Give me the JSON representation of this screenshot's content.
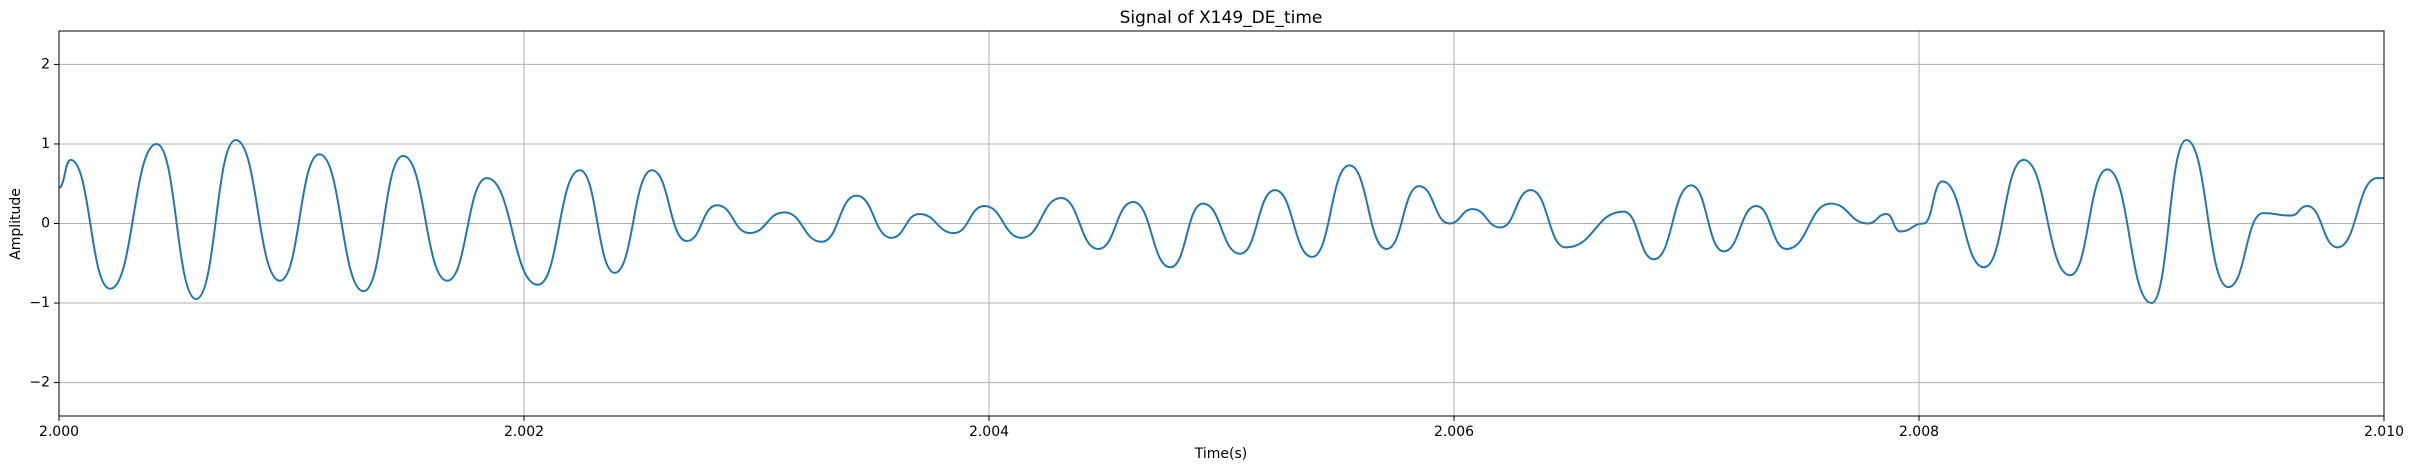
{
  "chart_data": {
    "type": "line",
    "title": "Signal of X149_DE_time",
    "x_label": "Time(s)",
    "y_label": "Amplitude",
    "x": [
      2.0,
      2.00005,
      2.00022,
      2.00042,
      2.00059,
      2.00076,
      2.00095,
      2.00112,
      2.00131,
      2.00148,
      2.00167,
      2.00184,
      2.00206,
      2.00224,
      2.00239,
      2.00255,
      2.0027,
      2.00283,
      2.00297,
      2.00312,
      2.00328,
      2.00343,
      2.00358,
      2.0037,
      2.00385,
      2.00398,
      2.00414,
      2.00431,
      2.00447,
      2.00462,
      2.00478,
      2.00492,
      2.00508,
      2.00523,
      2.00539,
      2.00555,
      2.00571,
      2.00585,
      2.00598,
      2.00608,
      2.0062,
      2.00633,
      2.00648,
      2.00673,
      2.00686,
      2.00702,
      2.00716,
      2.0073,
      2.00743,
      2.00762,
      2.00778,
      2.00786,
      2.00792,
      2.00802,
      2.0081,
      2.00828,
      2.00845,
      2.00865,
      2.00881,
      2.009,
      2.00915,
      2.00933,
      2.00948,
      2.0096,
      2.00967,
      2.0098,
      2.00997,
      2.01
    ],
    "series": [
      {
        "name": "X149_DE_time",
        "color": "#1f77b4",
        "values": [
          0.45,
          0.8,
          -0.82,
          1.0,
          -0.95,
          1.05,
          -0.72,
          0.87,
          -0.85,
          0.85,
          -0.72,
          0.57,
          -0.77,
          0.67,
          -0.62,
          0.67,
          -0.22,
          0.23,
          -0.12,
          0.14,
          -0.23,
          0.35,
          -0.18,
          0.12,
          -0.12,
          0.22,
          -0.18,
          0.32,
          -0.32,
          0.27,
          -0.55,
          0.25,
          -0.38,
          0.42,
          -0.42,
          0.73,
          -0.32,
          0.47,
          0.0,
          0.18,
          -0.05,
          0.42,
          -0.3,
          0.15,
          -0.45,
          0.48,
          -0.35,
          0.22,
          -0.32,
          0.25,
          0.0,
          0.12,
          -0.1,
          0.0,
          0.53,
          -0.55,
          0.8,
          -0.65,
          0.68,
          -1.0,
          1.05,
          -0.8,
          0.13,
          0.1,
          0.22,
          -0.3,
          0.57,
          0.57
        ]
      }
    ],
    "xlim": [
      2.0,
      2.01
    ],
    "xticks": [
      {
        "value": 2.0,
        "label": "2.000"
      },
      {
        "value": 2.002,
        "label": "2.002"
      },
      {
        "value": 2.004,
        "label": "2.004"
      },
      {
        "value": 2.006,
        "label": "2.006"
      },
      {
        "value": 2.008,
        "label": "2.008"
      },
      {
        "value": 2.01,
        "label": "2.010"
      }
    ],
    "ylim": [
      -2.42,
      2.42
    ],
    "yticks": [
      {
        "value": -2,
        "label": "−2"
      },
      {
        "value": -1,
        "label": "−1"
      },
      0,
      1,
      2
    ],
    "grid": true
  }
}
